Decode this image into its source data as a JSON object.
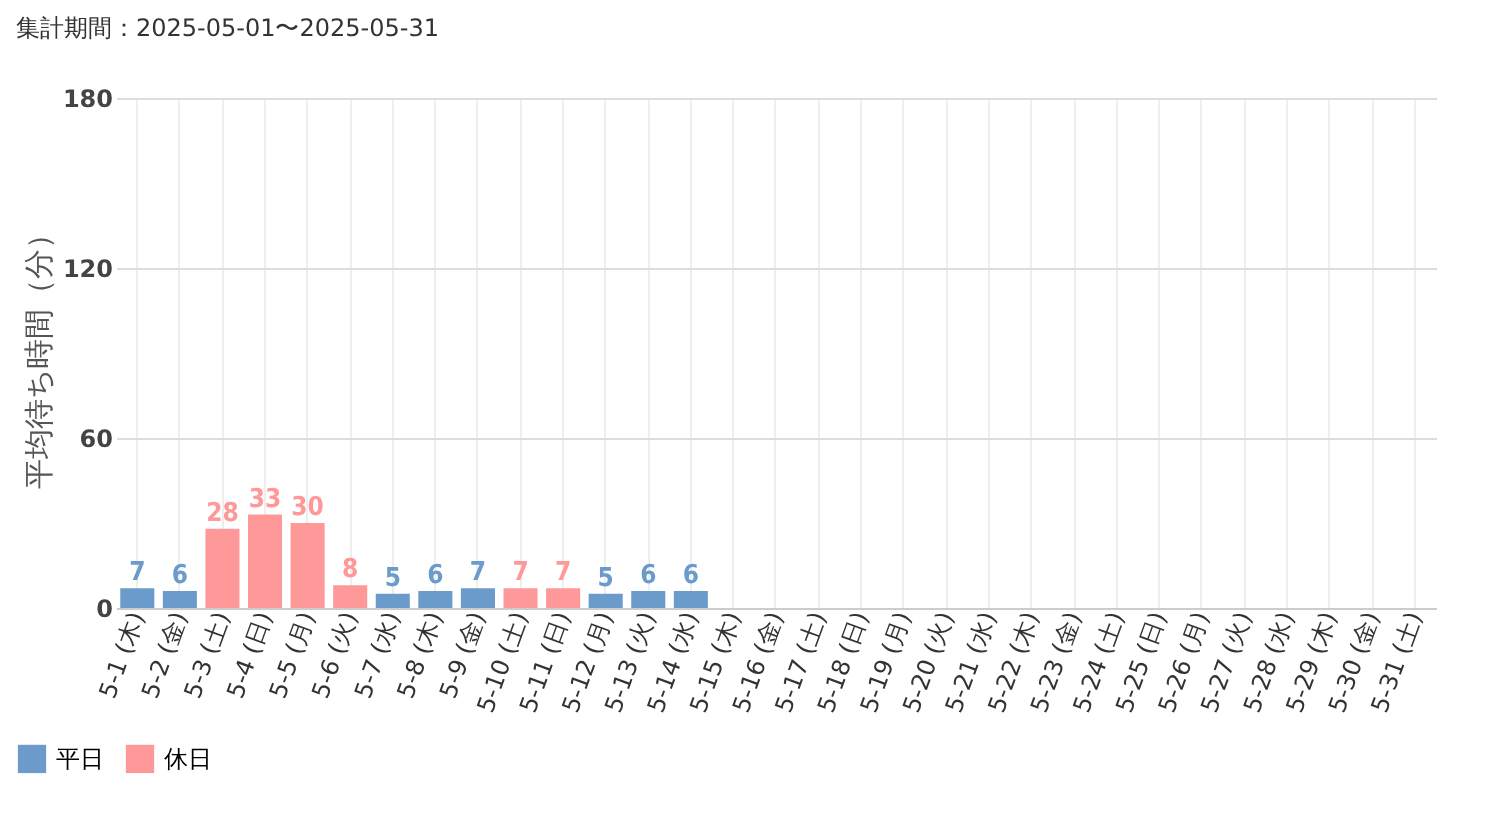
{
  "chart_data": {
    "type": "bar",
    "title": "集計期間：2025-05-01〜2025-05-31",
    "ylabel": "平均待ち時間（分）",
    "categories": [
      "5-1 (木)",
      "5-2 (金)",
      "5-3 (土)",
      "5-4 (日)",
      "5-5 (月)",
      "5-6 (火)",
      "5-7 (水)",
      "5-8 (木)",
      "5-9 (金)",
      "5-10 (土)",
      "5-11 (日)",
      "5-12 (月)",
      "5-13 (火)",
      "5-14 (水)",
      "5-15 (木)",
      "5-16 (金)",
      "5-17 (土)",
      "5-18 (日)",
      "5-19 (月)",
      "5-20 (火)",
      "5-21 (水)",
      "5-22 (木)",
      "5-23 (金)",
      "5-24 (土)",
      "5-25 (日)",
      "5-26 (月)",
      "5-27 (火)",
      "5-28 (水)",
      "5-29 (木)",
      "5-30 (金)",
      "5-31 (土)"
    ],
    "series": [
      {
        "name": "平日",
        "color": "#6a9bcb",
        "values": [
          7,
          6,
          null,
          null,
          null,
          null,
          5,
          6,
          7,
          null,
          null,
          5,
          6,
          6,
          null,
          null,
          null,
          null,
          null,
          null,
          null,
          null,
          null,
          null,
          null,
          null,
          null,
          null,
          null,
          null,
          null
        ]
      },
      {
        "name": "休日",
        "color": "#ff9999",
        "values": [
          null,
          null,
          28,
          33,
          30,
          8,
          null,
          null,
          null,
          7,
          7,
          null,
          null,
          null,
          null,
          null,
          null,
          null,
          null,
          null,
          null,
          null,
          null,
          null,
          null,
          null,
          null,
          null,
          null,
          null,
          null
        ]
      }
    ],
    "ylim": [
      0,
      180
    ],
    "yticks": [
      0,
      60,
      120,
      180
    ],
    "grid": true,
    "legend": "bottom left",
    "data_labels": true
  }
}
